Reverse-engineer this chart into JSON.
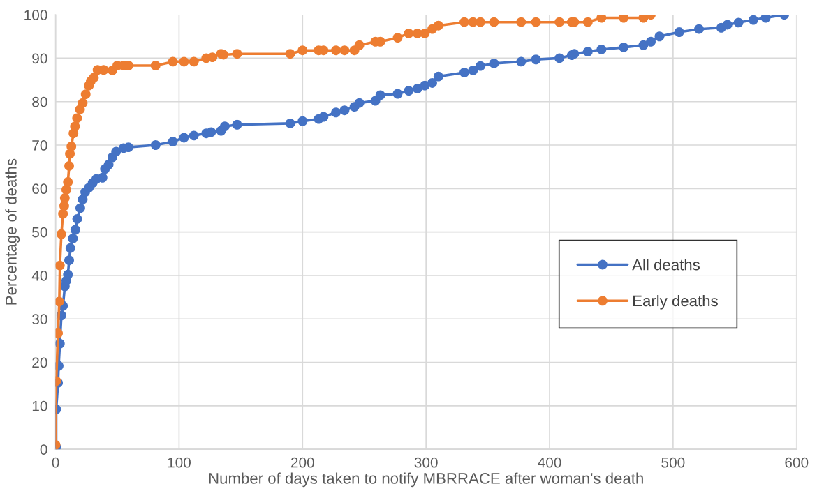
{
  "chart_data": {
    "type": "line",
    "xlabel": "Number of days taken to notify MBRRACE after woman's death",
    "ylabel": "Percentage of deaths",
    "xlim": [
      0,
      600
    ],
    "xticks": [
      0,
      100,
      200,
      300,
      400,
      500,
      600
    ],
    "ylim": [
      0,
      100
    ],
    "yticks": [
      0,
      10,
      20,
      30,
      40,
      50,
      60,
      70,
      80,
      90,
      100
    ],
    "grid": true,
    "legend": "right",
    "marker": "circle",
    "line_style": "solid",
    "series": [
      {
        "name": "All deaths",
        "color": "#4472c4",
        "x": [
          0.5,
          0.5,
          2,
          2.5,
          3.5,
          4.7,
          6,
          7.5,
          8.7,
          10,
          11,
          12,
          14,
          16,
          17.5,
          20,
          22,
          24,
          27,
          30,
          33,
          38,
          40,
          43,
          46,
          49,
          55,
          59,
          81,
          95,
          104,
          112,
          122,
          126,
          134,
          137,
          147,
          190,
          200,
          213,
          217,
          227,
          234,
          242,
          246,
          259,
          263,
          277,
          286,
          293,
          299,
          305,
          310,
          331,
          338,
          344,
          355,
          377,
          389,
          408,
          418,
          420,
          431,
          442,
          460,
          476,
          482,
          489,
          505,
          521,
          539,
          544,
          553,
          565,
          575,
          590
        ],
        "values": [
          0.5,
          9.2,
          15.3,
          19.2,
          24.3,
          30.8,
          33,
          37.5,
          38.8,
          40.2,
          43.5,
          46.3,
          48.5,
          50.5,
          53,
          55.5,
          57.5,
          59.2,
          60.2,
          61.3,
          62.2,
          62.5,
          64.5,
          65.5,
          67.2,
          68.5,
          69.3,
          69.5,
          70,
          70.8,
          71.7,
          72.2,
          72.7,
          73,
          73.3,
          74.3,
          74.7,
          75,
          75.5,
          76,
          76.5,
          77.5,
          78,
          78.8,
          79.7,
          80.2,
          81.5,
          81.8,
          82.5,
          83,
          83.7,
          84.3,
          85.8,
          86.7,
          87.2,
          88.2,
          88.8,
          89.2,
          89.7,
          90,
          90.7,
          91,
          91.5,
          92,
          92.5,
          93,
          93.8,
          95,
          96,
          96.7,
          97,
          97.7,
          98.2,
          98.8,
          99.3,
          100
        ]
      },
      {
        "name": "Early deaths",
        "color": "#ed7d31",
        "x": [
          0,
          0.5,
          2,
          3,
          3.5,
          4.7,
          6,
          7,
          7.5,
          8.7,
          10,
          11,
          11.6,
          12.8,
          14.5,
          15.7,
          17.4,
          19.8,
          22,
          24.4,
          27,
          28.5,
          31,
          34,
          39,
          46,
          50,
          55,
          59,
          81,
          95,
          104,
          112,
          122,
          127,
          134,
          136,
          147,
          190,
          200,
          213,
          217,
          227,
          234,
          242,
          246,
          259,
          263,
          277,
          286,
          293,
          299,
          305,
          310,
          331,
          338,
          344,
          355,
          377,
          389,
          408,
          418,
          420,
          431,
          442,
          460,
          476,
          482
        ],
        "values": [
          1,
          15.7,
          26.7,
          34,
          42.3,
          49.5,
          54.2,
          56,
          57.8,
          59.7,
          61.5,
          65.2,
          68,
          69.7,
          72.7,
          74.3,
          76.2,
          78.2,
          79.7,
          81.7,
          83.7,
          84.7,
          85.5,
          87.3,
          87.3,
          87.2,
          88.3,
          88.3,
          88.3,
          88.3,
          89.2,
          89.2,
          89.2,
          90,
          90.2,
          91,
          90.8,
          91,
          91,
          91.8,
          91.8,
          91.8,
          91.8,
          91.8,
          91.8,
          93,
          93.8,
          93.8,
          94.7,
          95.7,
          95.7,
          95.7,
          96.7,
          97.5,
          98.3,
          98.3,
          98.3,
          98.3,
          98.3,
          98.3,
          98.3,
          98.3,
          98.3,
          98.3,
          99.3,
          99.3,
          99.3,
          100
        ]
      }
    ]
  }
}
